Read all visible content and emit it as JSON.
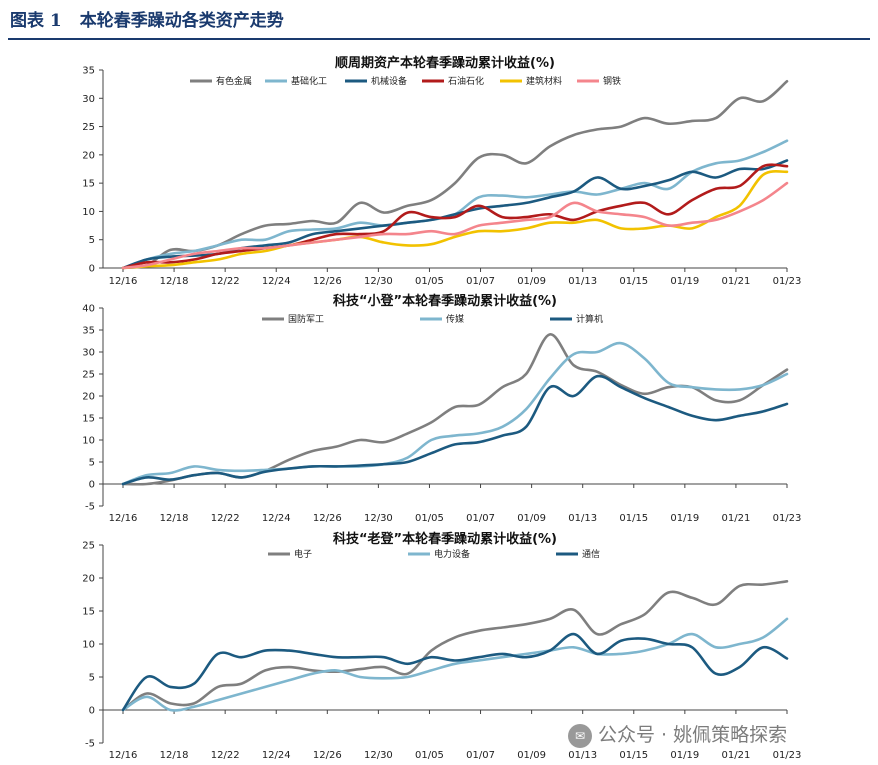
{
  "header": {
    "label": "图表 1",
    "title": "本轮春季躁动各类资产走势"
  },
  "watermark": "公众号 · 姚佩策略探索",
  "chart_data": [
    {
      "type": "line",
      "title": "顺周期资产本轮春季躁动累计收益(%)",
      "xticks": [
        "12/16",
        "12/18",
        "12/22",
        "12/24",
        "12/26",
        "12/30",
        "01/05",
        "01/07",
        "01/09",
        "01/13",
        "01/15",
        "01/19",
        "01/21",
        "01/23"
      ],
      "ylim": [
        0,
        35
      ],
      "yticks": [
        0,
        5,
        10,
        15,
        20,
        25,
        30,
        35
      ],
      "legend": "top",
      "series": [
        {
          "name": "有色金属",
          "color": "#7f7f7f",
          "values": [
            0,
            0.5,
            3.2,
            3,
            4,
            6,
            7.5,
            7.8,
            8.3,
            8,
            11.5,
            9.8,
            11,
            12,
            15,
            19.5,
            20,
            18.5,
            21.5,
            23.5,
            24.5,
            25,
            26.5,
            25.5,
            26,
            26.5,
            30,
            29.5,
            33
          ]
        },
        {
          "name": "基础化工",
          "color": "#7eb6ce",
          "values": [
            0,
            1.5,
            2.5,
            3,
            4,
            5,
            5,
            6.5,
            6.8,
            7,
            8,
            7.5,
            8,
            8.5,
            9.5,
            12.5,
            12.8,
            12.5,
            13,
            13.5,
            13,
            14,
            15,
            14,
            17,
            18.5,
            19,
            20.5,
            22.5
          ]
        },
        {
          "name": "机械设备",
          "color": "#1c5a80",
          "values": [
            0,
            1.5,
            2,
            2.2,
            2.5,
            3.5,
            4,
            4.5,
            6,
            6.5,
            7,
            7.5,
            8,
            8.5,
            9.5,
            10.5,
            11,
            11.5,
            12.5,
            13.5,
            16,
            14,
            14.5,
            15.5,
            17,
            16,
            17.5,
            17.5,
            19
          ]
        },
        {
          "name": "石油石化",
          "color": "#b21b1b",
          "values": [
            0,
            1,
            1,
            1.5,
            2.5,
            3,
            3.5,
            4,
            5,
            6,
            6,
            6.5,
            9.8,
            9,
            9,
            11,
            9,
            9,
            9.5,
            8.5,
            10,
            11,
            11.5,
            9.5,
            12,
            14,
            14.5,
            18,
            18
          ]
        },
        {
          "name": "建筑材料",
          "color": "#f2c200",
          "values": [
            0,
            0.3,
            0.5,
            1,
            1.5,
            2.5,
            3,
            4,
            4.5,
            5,
            5.5,
            4.5,
            4,
            4.2,
            5.5,
            6.5,
            6.5,
            7,
            8,
            8,
            8.5,
            7,
            7,
            7.5,
            7,
            9,
            11,
            16.5,
            17
          ]
        },
        {
          "name": "钢铁",
          "color": "#f4858c",
          "values": [
            0,
            0.5,
            1.5,
            2.5,
            3,
            3.5,
            3.5,
            4,
            4.5,
            5,
            5.5,
            6,
            6,
            6.5,
            6,
            7.5,
            8,
            8.5,
            9,
            11.5,
            10,
            9.5,
            9,
            7.5,
            8,
            8.5,
            10,
            12,
            15
          ]
        }
      ]
    },
    {
      "type": "line",
      "title": "科技“小登”本轮春季躁动累计收益(%)",
      "xticks": [
        "12/16",
        "12/18",
        "12/22",
        "12/24",
        "12/26",
        "12/30",
        "01/05",
        "01/07",
        "01/09",
        "01/13",
        "01/15",
        "01/19",
        "01/21",
        "01/23"
      ],
      "ylim": [
        -5,
        40
      ],
      "yticks": [
        -5,
        0,
        5,
        10,
        15,
        20,
        25,
        30,
        35,
        40
      ],
      "legend": "top",
      "series": [
        {
          "name": "国防军工",
          "color": "#7f7f7f",
          "values": [
            0,
            0,
            0.8,
            2,
            2.5,
            1.5,
            3,
            5.5,
            7.5,
            8.5,
            10,
            9.5,
            11.5,
            14,
            17.5,
            18,
            22,
            25,
            34,
            27,
            25.5,
            22.5,
            20.5,
            22,
            22,
            19,
            19,
            22.5,
            26
          ]
        },
        {
          "name": "传媒",
          "color": "#7eb6ce",
          "values": [
            0,
            2,
            2.5,
            4,
            3.2,
            3,
            3.2,
            3.5,
            4,
            4,
            4,
            4.5,
            6,
            10,
            11,
            11.5,
            13,
            17,
            24,
            29.5,
            30,
            32,
            28.5,
            23,
            22,
            21.5,
            21.5,
            22.5,
            25
          ]
        },
        {
          "name": "计算机",
          "color": "#1c5a80",
          "values": [
            0,
            1.5,
            1,
            2,
            2.5,
            1.5,
            2.8,
            3.5,
            4,
            4,
            4.2,
            4.5,
            5,
            7,
            9,
            9.5,
            11,
            13,
            22,
            20,
            24.5,
            22,
            19.5,
            17.5,
            15.5,
            14.5,
            15.5,
            16.5,
            18.2
          ]
        }
      ]
    },
    {
      "type": "line",
      "title": "科技“老登”本轮春季躁动累计收益(%)",
      "xticks": [
        "12/16",
        "12/18",
        "12/22",
        "12/24",
        "12/26",
        "12/30",
        "01/05",
        "01/07",
        "01/09",
        "01/13",
        "01/15",
        "01/19",
        "01/21",
        "01/23"
      ],
      "ylim": [
        -5,
        25
      ],
      "yticks": [
        -5,
        0,
        5,
        10,
        15,
        20,
        25
      ],
      "legend": "top",
      "series": [
        {
          "name": "电子",
          "color": "#7f7f7f",
          "values": [
            0,
            2.5,
            1,
            1,
            3.5,
            4,
            6,
            6.5,
            6,
            5.8,
            6.2,
            6.5,
            5.5,
            9,
            11,
            12,
            12.5,
            13,
            13.8,
            15.2,
            11.5,
            13,
            14.5,
            17.8,
            17,
            16,
            18.8,
            19,
            19.5
          ]
        },
        {
          "name": "电力设备",
          "color": "#7eb6ce",
          "values": [
            0,
            2,
            0,
            0.5,
            1.5,
            2.5,
            3.5,
            4.5,
            5.5,
            6,
            5,
            4.8,
            5,
            6,
            7,
            7.5,
            8,
            8.5,
            9,
            9.5,
            8.5,
            8.5,
            9,
            10,
            11.5,
            9.5,
            10,
            11,
            13.8
          ]
        },
        {
          "name": "通信",
          "color": "#1c5a80",
          "values": [
            0,
            5,
            3.5,
            4,
            8.5,
            8,
            9,
            9,
            8.5,
            8,
            8,
            8,
            7,
            8,
            7.5,
            8,
            8.5,
            8,
            9,
            11.5,
            8.5,
            10.5,
            10.8,
            10,
            9.5,
            5.5,
            6.5,
            9.5,
            7.8
          ]
        }
      ]
    }
  ]
}
